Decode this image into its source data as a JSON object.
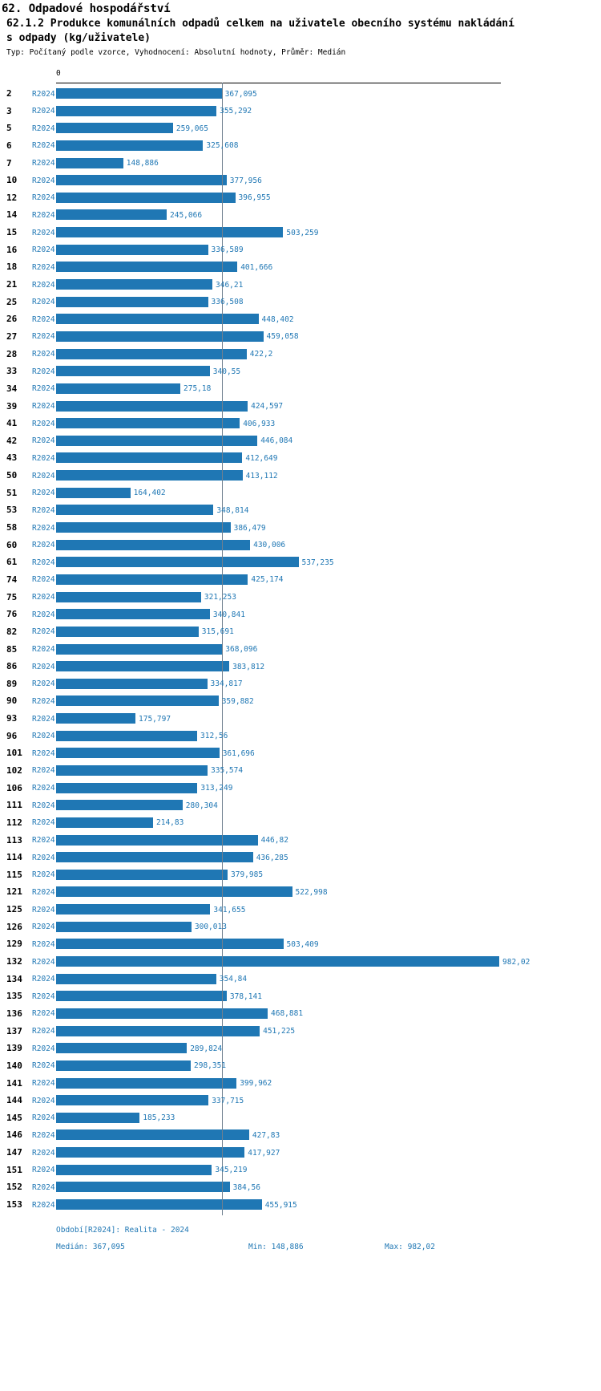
{
  "header": {
    "title": "62. Odpadové hospodářství",
    "subtitle_line1": "62.1.2 Produkce komunálních odpadů celkem na uživatele obecního systému nakládání",
    "subtitle_line2": "s odpady (kg/uživatele)",
    "meta": "Typ: Počítaný podle vzorce, Vyhodnocení: Absolutní hodnoty, Průměr: Medián"
  },
  "chart_data": {
    "type": "bar",
    "orientation": "horizontal",
    "title": "62.1.2 Produkce komunálních odpadů celkem na uživatele obecního systému nakládání s odpady (kg/uživatele)",
    "series_name": "R2024",
    "zero_label": "0",
    "xlim": [
      0,
      982.02
    ],
    "median": 367.095,
    "min": 148.886,
    "max": 982.02,
    "categories": [
      "2",
      "3",
      "5",
      "6",
      "7",
      "10",
      "12",
      "14",
      "15",
      "16",
      "18",
      "21",
      "25",
      "26",
      "27",
      "28",
      "33",
      "34",
      "39",
      "41",
      "42",
      "43",
      "50",
      "51",
      "53",
      "58",
      "60",
      "61",
      "74",
      "75",
      "76",
      "82",
      "85",
      "86",
      "89",
      "90",
      "93",
      "96",
      "101",
      "102",
      "106",
      "111",
      "112",
      "113",
      "114",
      "115",
      "121",
      "125",
      "126",
      "129",
      "132",
      "134",
      "135",
      "136",
      "137",
      "139",
      "140",
      "141",
      "144",
      "145",
      "146",
      "147",
      "151",
      "152",
      "153"
    ],
    "values": [
      367.095,
      355.292,
      259.065,
      325.608,
      148.886,
      377.956,
      396.955,
      245.066,
      503.259,
      336.589,
      401.666,
      346.21,
      336.508,
      448.402,
      459.058,
      422.2,
      340.55,
      275.18,
      424.597,
      406.933,
      446.084,
      412.649,
      413.112,
      164.402,
      348.814,
      386.479,
      430.006,
      537.235,
      425.174,
      321.253,
      340.841,
      315.691,
      368.096,
      383.812,
      334.817,
      359.882,
      175.797,
      312.56,
      361.696,
      335.574,
      313.249,
      280.304,
      214.83,
      446.82,
      436.285,
      379.985,
      522.998,
      341.655,
      300.013,
      503.409,
      982.02,
      354.84,
      378.141,
      468.881,
      451.225,
      289.824,
      298.351,
      399.962,
      337.715,
      185.233,
      427.83,
      417.927,
      345.219,
      384.56,
      455.915
    ],
    "value_labels": [
      "367,095",
      "355,292",
      "259,065",
      "325,608",
      "148,886",
      "377,956",
      "396,955",
      "245,066",
      "503,259",
      "336,589",
      "401,666",
      "346,21",
      "336,508",
      "448,402",
      "459,058",
      "422,2",
      "340,55",
      "275,18",
      "424,597",
      "406,933",
      "446,084",
      "412,649",
      "413,112",
      "164,402",
      "348,814",
      "386,479",
      "430,006",
      "537,235",
      "425,174",
      "321,253",
      "340,841",
      "315,691",
      "368,096",
      "383,812",
      "334,817",
      "359,882",
      "175,797",
      "312,56",
      "361,696",
      "335,574",
      "313,249",
      "280,304",
      "214,83",
      "446,82",
      "436,285",
      "379,985",
      "522,998",
      "341,655",
      "300,013",
      "503,409",
      "982,02",
      "354,84",
      "378,141",
      "468,881",
      "451,225",
      "289,824",
      "298,351",
      "399,962",
      "337,715",
      "185,233",
      "427,83",
      "417,927",
      "345,219",
      "384,56",
      "455,915"
    ]
  },
  "footer": {
    "period": "Období[R2024]: Realita - 2024",
    "median": "Medián: 367,095",
    "min": "Min: 148,886",
    "max": "Max: 982,02"
  },
  "colors": {
    "bar": "#1f77b4",
    "text_blue": "#1f77b4",
    "axis": "#000000",
    "median_line": "#6f7f8f"
  }
}
